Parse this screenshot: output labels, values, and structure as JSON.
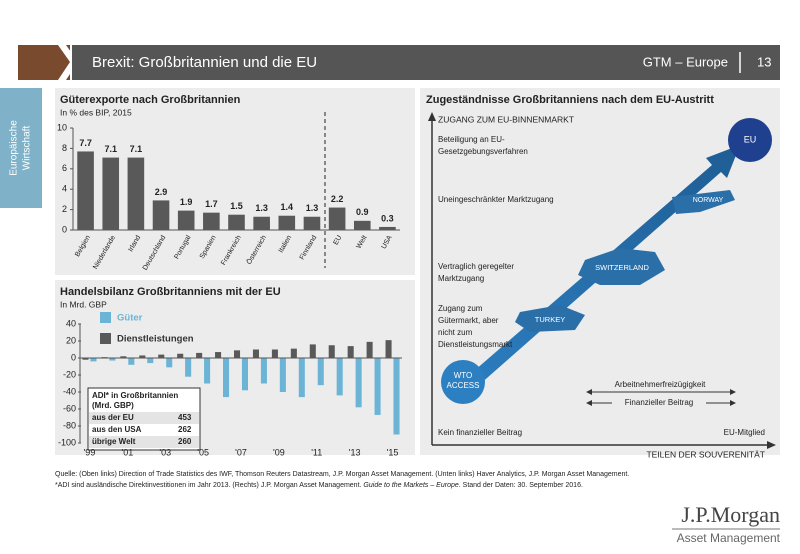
{
  "header": {
    "title": "Brexit: Großbritannien und die EU",
    "series": "GTM – Europe",
    "page": 13
  },
  "sidebar": [
    "Europäische",
    "Wirtschaft"
  ],
  "chart_data": [
    {
      "type": "bar",
      "title": "Güterexporte nach Großbritannien",
      "subtitle": "In % des BIP, 2015",
      "categories": [
        "Belgien",
        "Niederlande",
        "Irland",
        "Deutschland",
        "Portugal",
        "Spanien",
        "Frankreich",
        "Österreich",
        "Italien",
        "Finnland",
        "EU",
        "Welt",
        "USA"
      ],
      "values": [
        7.7,
        7.1,
        7.1,
        2.9,
        1.9,
        1.7,
        1.5,
        1.3,
        1.4,
        1.3,
        2.2,
        0.9,
        0.3
      ],
      "color": "#595959",
      "ylim": [
        0,
        10
      ],
      "yticks": [
        0,
        2,
        4,
        6,
        8,
        10
      ]
    },
    {
      "type": "grouped-bar",
      "title": "Handelsbilanz Großbritanniens mit der EU",
      "subtitle": "In Mrd. GBP",
      "categories": [
        "'99",
        null,
        "'01",
        null,
        "'03",
        null,
        "'05",
        null,
        "'07",
        null,
        "'09",
        null,
        "'11",
        null,
        "'13",
        null,
        "'15"
      ],
      "series": [
        {
          "name": "Güter",
          "color": "#6cb4d6",
          "values": [
            -4,
            -3,
            -8,
            -6,
            -11,
            -22,
            -30,
            -46,
            -38,
            -30,
            -40,
            -46,
            -32,
            -44,
            -58,
            -67,
            -90
          ]
        },
        {
          "name": "Dienstleistungen",
          "color": "#595959",
          "values": [
            -2,
            1,
            2,
            3,
            4,
            5,
            6,
            7,
            9,
            10,
            10,
            11,
            16,
            15,
            14,
            19,
            21
          ]
        }
      ],
      "ylim": [
        -100,
        40
      ],
      "yticks": [
        -100,
        -80,
        -60,
        -40,
        -20,
        0,
        20,
        40
      ],
      "inset": {
        "title": [
          "ADI* in Großbritannien",
          "(Mrd. GBP)"
        ],
        "rows": [
          [
            "aus der EU",
            453
          ],
          [
            "aus den USA",
            262
          ],
          [
            "übrige Welt",
            260
          ]
        ]
      }
    }
  ],
  "diagram": {
    "title": "Zugeständnisse Großbritanniens nach dem EU-Austritt",
    "y_axis": "ZUGANG ZUM EU-BINNENMARKT",
    "x_axis": "TEILEN DER SOUVERENITÄT",
    "levels": [
      [
        "Beteiligung an EU-",
        "Gesetzgebungsverfahren"
      ],
      [
        "Uneingeschränkter Marktzugang"
      ],
      [
        "Vertraglich geregelter",
        "Marktzugang"
      ],
      [
        "Zugang zum",
        "Gütermarkt, aber",
        "nicht zum",
        "Dienstleistungsmarkt"
      ]
    ],
    "nodes": [
      "EU",
      "NORWAY",
      "SWITZERLAND",
      "TURKEY",
      [
        "WTO",
        "ACCESS"
      ]
    ],
    "arrows": [
      "Arbeitnehmerfreizügigkeit",
      "Finanzieller Beitrag"
    ],
    "x_ends": [
      "Kein finanzieller Beitrag",
      "EU-Mitglied"
    ]
  },
  "footer": {
    "source": "Quelle: (Oben links) Direction of Trade Statistics des IWF, Thomson Reuters Datastream, J.P. Morgan Asset Management. (Unten links) Haver Analytics, J.P. Morgan Asset Management.",
    "note": [
      "*ADI sind ausländische Direktinvestitionen im Jahr 2013. (Rechts) J.P. Morgan Asset Management. ",
      "Guide to the Markets – Europe",
      ". Stand der Daten: 30. September 2016."
    ],
    "logo": [
      "J.P.Morgan",
      "Asset Management"
    ]
  }
}
